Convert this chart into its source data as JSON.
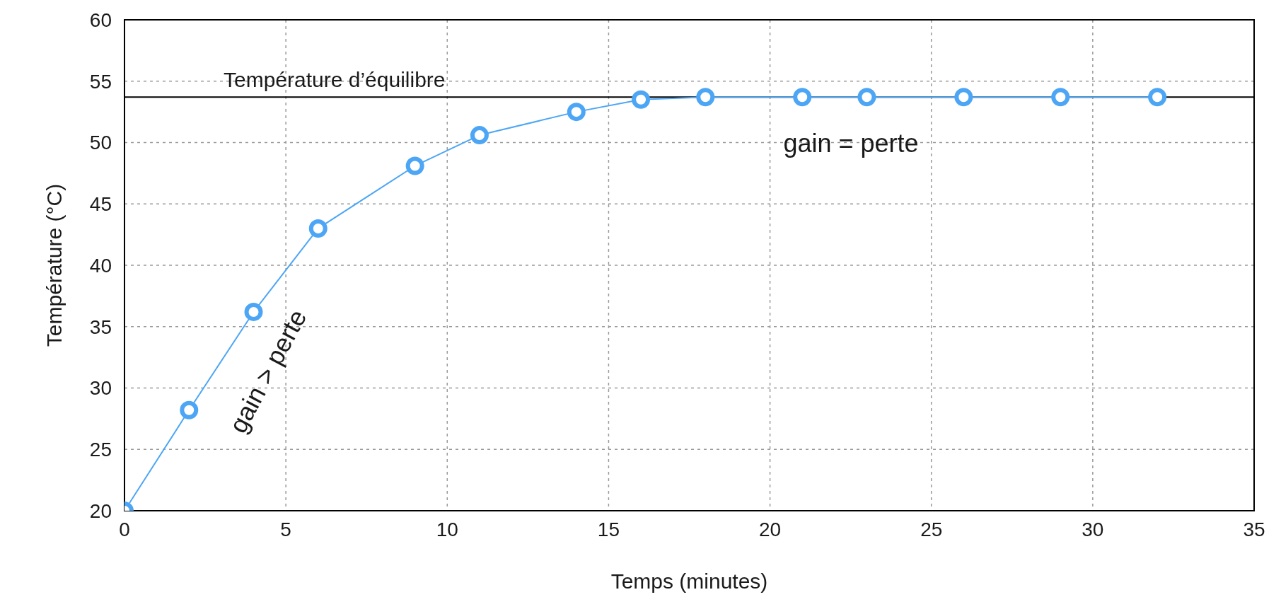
{
  "chart_data": {
    "type": "line",
    "xlabel": "Temps (minutes)",
    "ylabel": "Température (°C)",
    "x": [
      0,
      2,
      4,
      6,
      9,
      11,
      14,
      16,
      18,
      21,
      23,
      26,
      29,
      32
    ],
    "series": [
      {
        "color": "#4da6f5",
        "values": [
          20,
          28.2,
          36.2,
          43,
          48.1,
          50.6,
          52.5,
          53.5,
          53.7,
          53.7,
          53.7,
          53.7,
          53.7,
          53.7
        ]
      }
    ],
    "xlim": [
      0,
      35
    ],
    "xticks": [
      0,
      5,
      10,
      15,
      20,
      25,
      30,
      35
    ],
    "ylim": [
      20,
      60
    ],
    "yticks": [
      20,
      25,
      30,
      35,
      40,
      45,
      50,
      55,
      60
    ],
    "grid": true,
    "marker": "circle",
    "line_style": "solid",
    "ref_lines": [
      {
        "axis": "y",
        "value": 53.7,
        "label": "Température d’équilibre",
        "color": "#000000"
      }
    ],
    "annotations": [
      "gain > perte",
      "gain = perte"
    ]
  }
}
